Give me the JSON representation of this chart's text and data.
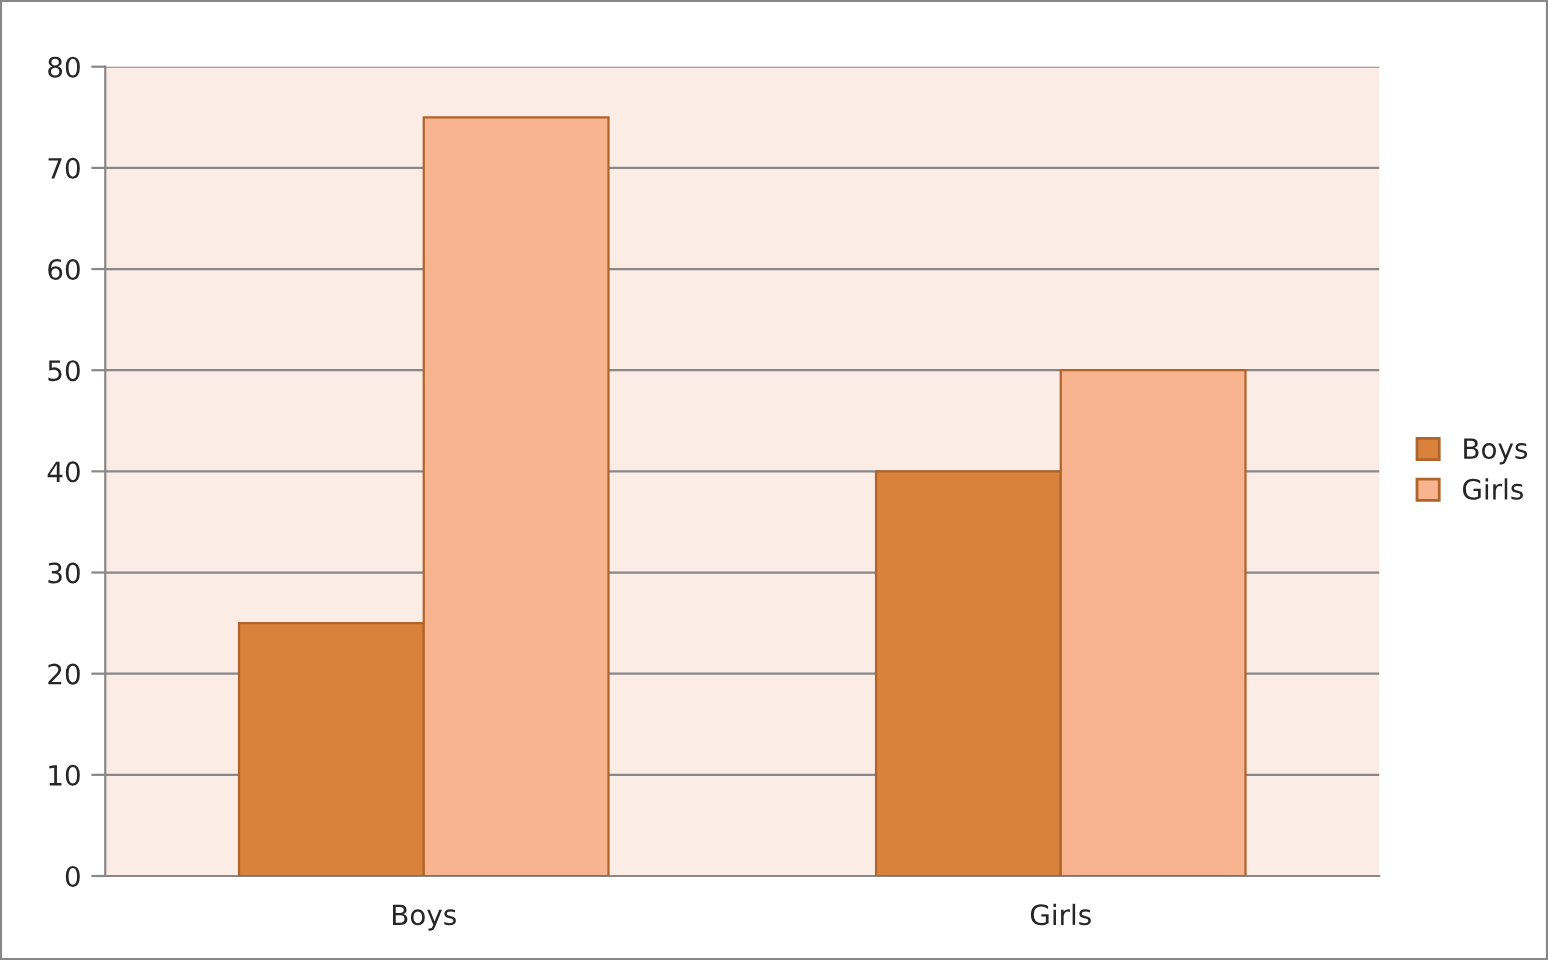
{
  "chart_data": {
    "type": "bar",
    "categories": [
      "Boys",
      "Girls"
    ],
    "series": [
      {
        "name": "Boys",
        "color": "#d9823b",
        "values": [
          25,
          40
        ]
      },
      {
        "name": "Girls",
        "color": "#f8b48e",
        "values": [
          75,
          50
        ]
      }
    ],
    "ylim": [
      0,
      80
    ],
    "yticks": [
      0,
      10,
      20,
      30,
      40,
      50,
      60,
      70,
      80
    ],
    "grid": "y",
    "legend": "right"
  }
}
